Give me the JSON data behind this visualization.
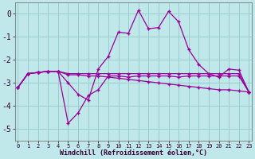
{
  "x": [
    0,
    1,
    2,
    3,
    4,
    5,
    6,
    7,
    8,
    9,
    10,
    11,
    12,
    13,
    14,
    15,
    16,
    17,
    18,
    19,
    20,
    21,
    22,
    23
  ],
  "line_main": [
    -3.2,
    -2.6,
    -2.55,
    -2.5,
    -2.5,
    -3.0,
    -3.5,
    -3.75,
    -2.4,
    -1.85,
    -0.8,
    -0.85,
    0.15,
    -0.65,
    -0.6,
    0.1,
    -0.35,
    -1.55,
    -2.2,
    -2.6,
    -2.75,
    -2.4,
    -2.45,
    -3.4
  ],
  "line_low": [
    -3.2,
    -2.6,
    -2.55,
    -2.5,
    -2.5,
    -4.75,
    -4.3,
    -3.55,
    -3.3,
    -2.7,
    -2.7,
    -2.75,
    -2.7,
    -2.7,
    -2.7,
    -2.7,
    -2.75,
    -2.7,
    -2.7,
    -2.7,
    -2.7,
    -2.7,
    -2.7,
    -3.4
  ],
  "line_flat": [
    -3.2,
    -2.6,
    -2.55,
    -2.5,
    -2.5,
    -2.6,
    -2.6,
    -2.6,
    -2.6,
    -2.6,
    -2.6,
    -2.6,
    -2.6,
    -2.6,
    -2.6,
    -2.6,
    -2.6,
    -2.6,
    -2.6,
    -2.6,
    -2.6,
    -2.6,
    -2.6,
    -3.4
  ],
  "line_slope": [
    -3.2,
    -2.6,
    -2.55,
    -2.5,
    -2.5,
    -2.65,
    -2.65,
    -2.7,
    -2.7,
    -2.75,
    -2.8,
    -2.85,
    -2.9,
    -2.95,
    -3.0,
    -3.05,
    -3.1,
    -3.15,
    -3.2,
    -3.25,
    -3.3,
    -3.3,
    -3.35,
    -3.4
  ],
  "color": "#990099",
  "bg_color": "#c0e8ea",
  "grid_color": "#99cccc",
  "xlabel": "Windchill (Refroidissement éolien,°C)",
  "ylim": [
    -5.5,
    0.5
  ],
  "xlim": [
    -0.3,
    23.3
  ],
  "yticks": [
    0,
    -1,
    -2,
    -3,
    -4,
    -5
  ],
  "xtick_labels": [
    "0",
    "1",
    "2",
    "3",
    "4",
    "5",
    "6",
    "7",
    "8",
    "9",
    "10",
    "11",
    "12",
    "13",
    "14",
    "15",
    "16",
    "17",
    "18",
    "19",
    "20",
    "21",
    "22",
    "23"
  ]
}
